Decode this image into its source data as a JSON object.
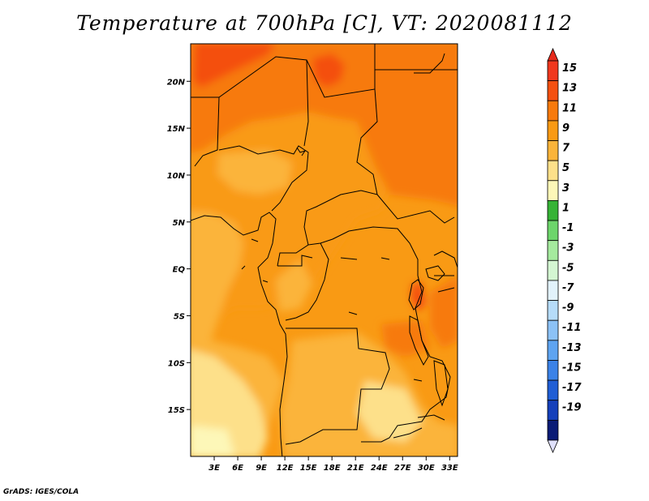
{
  "title": "Temperature at 700hPa [C], VT: 2020081112",
  "credit": "GrADS: IGES/COLA",
  "map": {
    "lon_range": [
      0,
      34
    ],
    "lat_range": [
      -20,
      24
    ],
    "x_ticks": [
      {
        "lon": 3,
        "label": "3E"
      },
      {
        "lon": 6,
        "label": "6E"
      },
      {
        "lon": 9,
        "label": "9E"
      },
      {
        "lon": 12,
        "label": "12E"
      },
      {
        "lon": 15,
        "label": "15E"
      },
      {
        "lon": 18,
        "label": "18E"
      },
      {
        "lon": 21,
        "label": "21E"
      },
      {
        "lon": 24,
        "label": "24E"
      },
      {
        "lon": 27,
        "label": "27E"
      },
      {
        "lon": 30,
        "label": "30E"
      },
      {
        "lon": 33,
        "label": "33E"
      }
    ],
    "y_ticks": [
      {
        "lat": 20,
        "label": "20N"
      },
      {
        "lat": 15,
        "label": "15N"
      },
      {
        "lat": 10,
        "label": "10N"
      },
      {
        "lat": 5,
        "label": "5N"
      },
      {
        "lat": 0,
        "label": "EQ"
      },
      {
        "lat": -5,
        "label": "5S"
      },
      {
        "lat": -10,
        "label": "10S"
      },
      {
        "lat": -15,
        "label": "15S"
      }
    ]
  },
  "colorbar": {
    "levels": [
      "15",
      "13",
      "11",
      "9",
      "7",
      "5",
      "3",
      "1",
      "-1",
      "-3",
      "-5",
      "-7",
      "-9",
      "-11",
      "-13",
      "-15",
      "-17",
      "-19"
    ],
    "colors": [
      "#f0381e",
      "#f45010",
      "#f77a0c",
      "#f99a14",
      "#fbb43a",
      "#fde08a",
      "#fdf7b8",
      "#36b336",
      "#6dd56b",
      "#a5ea9e",
      "#d4f6d2",
      "#e2f2fb",
      "#b6dcf9",
      "#8cc2f6",
      "#5ea4f1",
      "#3b82e7",
      "#205ed5",
      "#1540bb",
      "#0a1b76"
    ],
    "top_tip_color": "#e62a1c",
    "bottom_tip_color": "#dfe0fb"
  }
}
